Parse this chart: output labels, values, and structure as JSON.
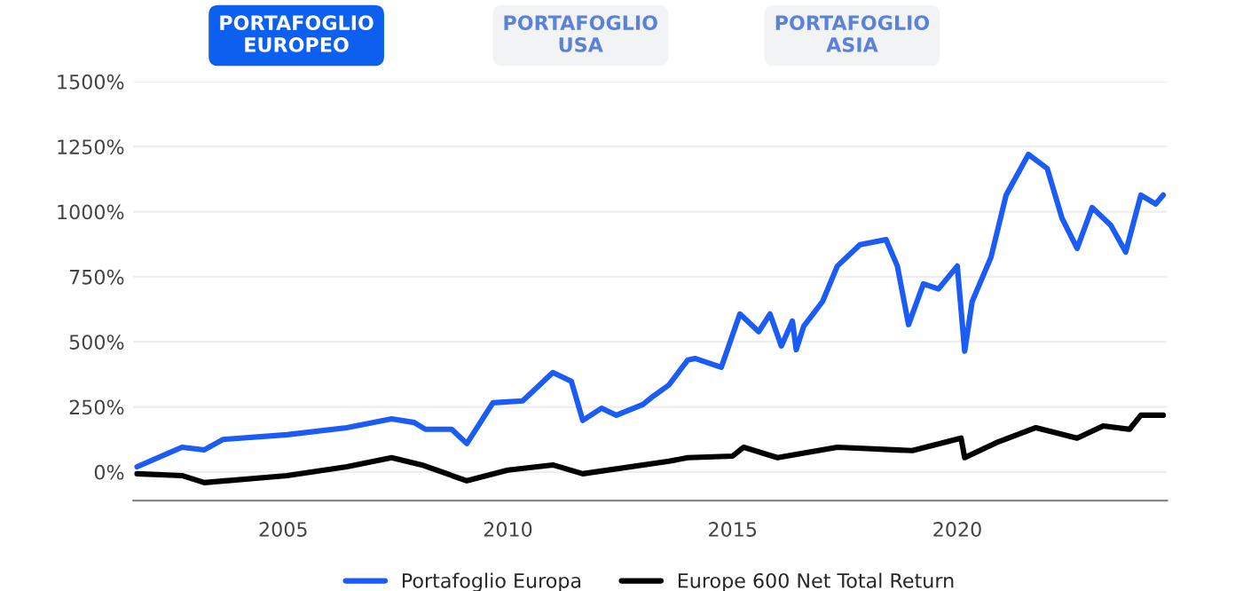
{
  "chart_data": {
    "type": "line",
    "annotations": [
      "PORTAFOGLIO\nEUROPEO",
      "PORTAFOGLIO\nUSA",
      "PORTAFOGLIO\nASIA"
    ],
    "xlim": [
      "2001-09",
      "2024-09"
    ],
    "xticks": [
      {
        "value": "2005-01",
        "label": "2005"
      },
      {
        "value": "2010-01",
        "label": "2010"
      },
      {
        "value": "2015-01",
        "label": "2015"
      },
      {
        "value": "2020-01",
        "label": "2020"
      }
    ],
    "ylim": [
      -110,
      1500
    ],
    "yticks": [
      {
        "value": 0,
        "label": "0%"
      },
      {
        "value": 250,
        "label": "250%"
      },
      {
        "value": 500,
        "label": "500%"
      },
      {
        "value": 750,
        "label": "750%"
      },
      {
        "value": 1000,
        "label": "1000%"
      },
      {
        "value": 1250,
        "label": "1250%"
      },
      {
        "value": 1500,
        "label": "1500%"
      }
    ],
    "grid": "y",
    "legend": "bottom",
    "marker": "none",
    "line_style": "solid",
    "series": [
      {
        "name": "Portafoglio Europa",
        "color": "#1a5cf5",
        "x": [
          "2001-10",
          "2002-10",
          "2003-04",
          "2003-09",
          "2005-02",
          "2006-06",
          "2007-06",
          "2007-12",
          "2008-03",
          "2008-10",
          "2009-02",
          "2009-06",
          "2009-09",
          "2010-05",
          "2011-01",
          "2011-06",
          "2011-09",
          "2012-02",
          "2012-06",
          "2013-01",
          "2013-04",
          "2013-08",
          "2014-01",
          "2014-03",
          "2014-10",
          "2015-03",
          "2015-08",
          "2015-11",
          "2016-02",
          "2016-05",
          "2016-06",
          "2016-08",
          "2017-01",
          "2017-05",
          "2017-11",
          "2018-06",
          "2018-09",
          "2018-12",
          "2019-04",
          "2019-08",
          "2020-01",
          "2020-03",
          "2020-05",
          "2020-10",
          "2021-02",
          "2021-08",
          "2022-01",
          "2022-05",
          "2022-09",
          "2023-01",
          "2023-06",
          "2023-10",
          "2024-02",
          "2024-06",
          "2024-08"
        ],
        "values": [
          20,
          95,
          85,
          125,
          143,
          170,
          204,
          190,
          164,
          164,
          109,
          198,
          266,
          273,
          382,
          348,
          198,
          245,
          218,
          259,
          293,
          334,
          430,
          436,
          402,
          607,
          539,
          607,
          484,
          580,
          470,
          560,
          655,
          791,
          873,
          893,
          791,
          566,
          723,
          703,
          791,
          464,
          655,
          825,
          1064,
          1220,
          1166,
          975,
          859,
          1016,
          948,
          845,
          1064,
          1030,
          1064
        ]
      },
      {
        "name": "Europe 600 Net Total Return",
        "color": "#000000",
        "x": [
          "2001-10",
          "2002-10",
          "2003-04",
          "2005-02",
          "2006-06",
          "2007-06",
          "2008-02",
          "2009-02",
          "2010-01",
          "2011-01",
          "2011-09",
          "2013-08",
          "2014-01",
          "2015-01",
          "2015-04",
          "2016-01",
          "2017-05",
          "2019-01",
          "2020-02",
          "2020-03",
          "2020-12",
          "2021-10",
          "2022-09",
          "2023-04",
          "2023-11",
          "2024-02",
          "2024-08"
        ],
        "values": [
          -7,
          -14,
          -41,
          -14,
          20,
          55,
          27,
          -34,
          7,
          27,
          -7,
          41,
          55,
          61,
          95,
          55,
          95,
          82,
          130,
          55,
          116,
          170,
          130,
          177,
          164,
          218,
          218
        ]
      }
    ]
  }
}
